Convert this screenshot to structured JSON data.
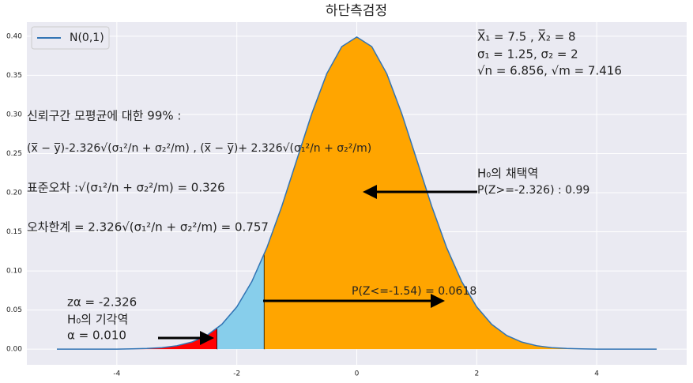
{
  "chart_data": {
    "type": "line",
    "title": "하단측검정",
    "x": [
      -5,
      -4.75,
      -4.5,
      -4.25,
      -4,
      -3.75,
      -3.5,
      -3.25,
      -3,
      -2.75,
      -2.5,
      -2.25,
      -2,
      -1.75,
      -1.5,
      -1.25,
      -1,
      -0.75,
      -0.5,
      -0.25,
      0,
      0.25,
      0.5,
      0.75,
      1,
      1.25,
      1.5,
      1.75,
      2,
      2.25,
      2.5,
      2.75,
      3,
      3.25,
      3.5,
      3.75,
      4,
      4.25,
      4.5,
      4.75,
      5
    ],
    "series": [
      {
        "name": "N(0,1)",
        "color": "#3274b4",
        "values": [
          0.0,
          0.0,
          0.0,
          0.0,
          0.0001,
          0.0004,
          0.0009,
          0.002,
          0.0044,
          0.0091,
          0.0175,
          0.0317,
          0.054,
          0.0863,
          0.1295,
          0.1826,
          0.242,
          0.3011,
          0.3521,
          0.3867,
          0.3989,
          0.3867,
          0.3521,
          0.3011,
          0.242,
          0.1826,
          0.1295,
          0.0863,
          0.054,
          0.0317,
          0.0175,
          0.0091,
          0.0044,
          0.002,
          0.0009,
          0.0004,
          0.0001,
          0.0,
          0.0,
          0.0,
          0.0
        ]
      }
    ],
    "regions": [
      {
        "x0": -5,
        "x1": -2.326,
        "color": "#ff0000"
      },
      {
        "x0": -2.326,
        "x1": -1.54,
        "color": "#87ceeb"
      },
      {
        "x0": -1.54,
        "x1": 5,
        "color": "#ffa500"
      }
    ],
    "xlim": [
      -5.5,
      5.5
    ],
    "xticks": [
      -4,
      -2,
      0,
      2,
      4
    ],
    "ylim": [
      -0.02,
      0.418
    ],
    "yticks": [
      {
        "value": 0,
        "label": "0.00"
      },
      {
        "value": 0.05,
        "label": "0.05"
      },
      {
        "value": 0.1,
        "label": "0.10"
      },
      {
        "value": 0.15,
        "label": "0.15"
      },
      {
        "value": 0.2,
        "label": "0.20"
      },
      {
        "value": 0.25,
        "label": "0.25"
      },
      {
        "value": 0.3,
        "label": "0.30"
      },
      {
        "value": 0.35,
        "label": "0.35"
      },
      {
        "value": 0.4,
        "label": "0.40"
      }
    ],
    "grid": true,
    "legend": "upper left",
    "annotations": [
      "X̅₁ = 7.5 , X̅₂ = 8",
      "σ₁ = 1.25, σ₂ = 2",
      "√n = 6.856, √m = 7.416",
      "신뢰구간 모평균에 대한 99% :",
      "(x̅ − y̅)-2.326√(σ₁²/n + σ₂²/m) , (x̅ − y̅)+ 2.326√(σ₁²/n + σ₂²/m)",
      "표준오차 :√(σ₁²/n + σ₂²/m) = 0.326",
      "오차한계 = 2.326√(σ₁²/n + σ₂²/m) = 0.757",
      "H₀의 채택역",
      "P(Z>=-2.326) : 0.99",
      "P(Z<=-1.54)  = 0.0618",
      "zα = -2.326",
      "H₀의 기각역",
      "α = 0.010"
    ]
  }
}
